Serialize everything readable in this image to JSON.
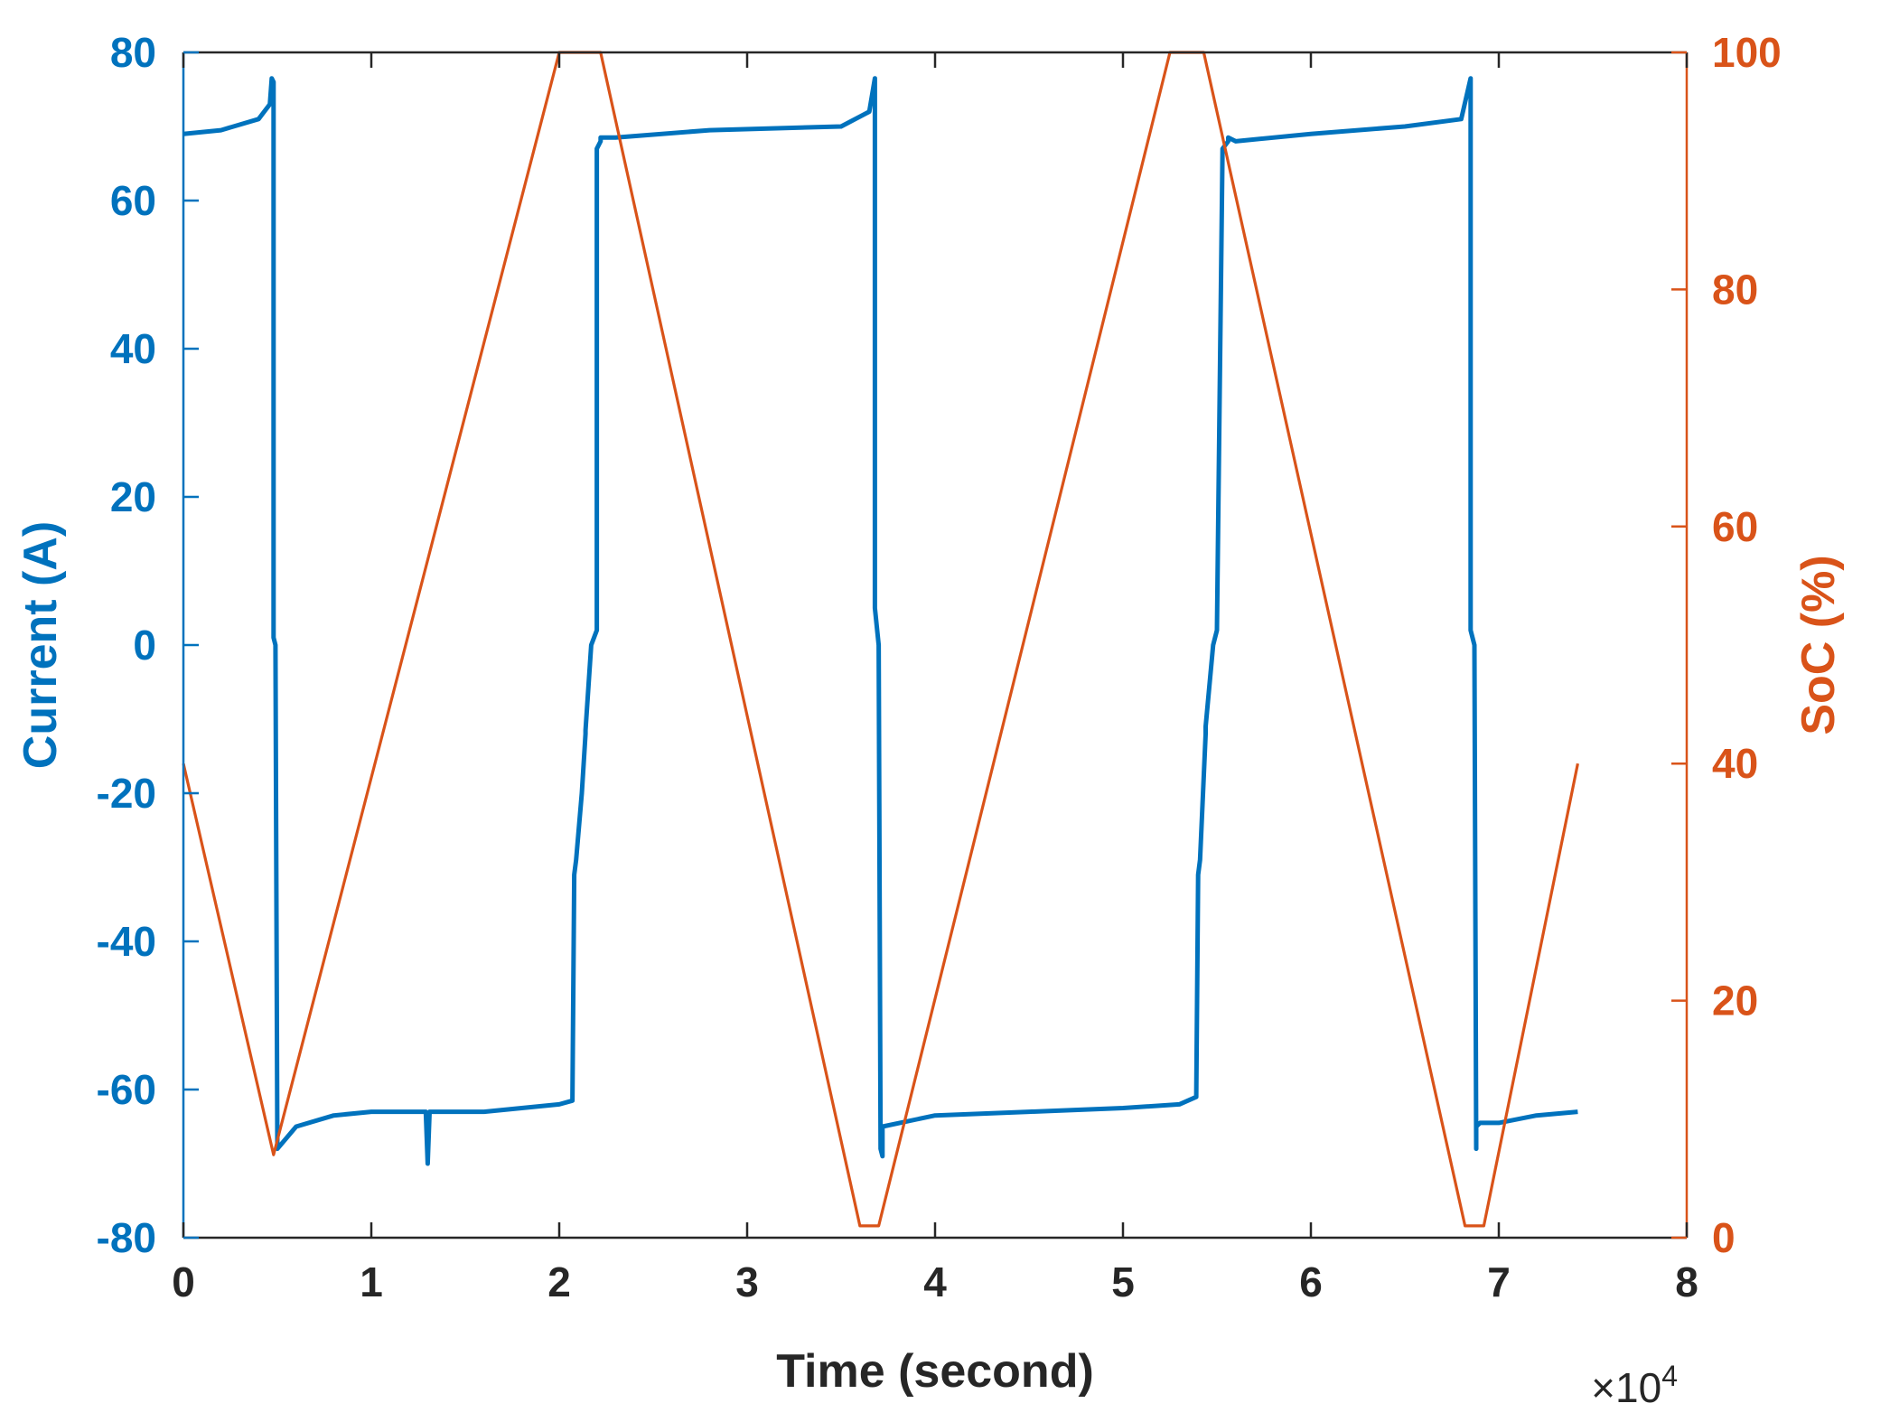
{
  "chart_data": {
    "type": "line",
    "xlabel": "Time (second)",
    "x_exponent_label": "×10",
    "x_exponent_power": "4",
    "x_multiplier": 10000,
    "xlim": [
      0,
      8
    ],
    "xticks": [
      "0",
      "1",
      "2",
      "3",
      "4",
      "5",
      "6",
      "7",
      "8"
    ],
    "left_axis": {
      "label": "Current (A)",
      "color": "#0072BD",
      "ylim": [
        -80,
        80
      ],
      "ticks": [
        "-80",
        "-60",
        "-40",
        "-20",
        "0",
        "20",
        "40",
        "60",
        "80"
      ]
    },
    "right_axis": {
      "label": "SoC (%)",
      "color": "#D95319",
      "ylim": [
        0,
        100
      ],
      "ticks": [
        "0",
        "20",
        "40",
        "60",
        "80",
        "100"
      ]
    },
    "grid": false,
    "series": [
      {
        "axis": "left",
        "color": "#0072BD",
        "x": [
          0,
          0.2,
          0.4,
          0.46,
          0.47,
          0.48,
          0.48,
          0.49,
          0.5,
          0.6,
          0.8,
          1.0,
          1.29,
          1.3,
          1.31,
          1.6,
          2.0,
          2.07,
          2.08,
          2.09,
          2.12,
          2.14,
          2.14,
          2.17,
          2.2,
          2.2,
          2.22,
          2.22,
          2.3,
          2.8,
          3.5,
          3.65,
          3.68,
          3.68,
          3.7,
          3.71,
          3.72,
          3.72,
          4.0,
          4.5,
          5.0,
          5.3,
          5.39,
          5.4,
          5.41,
          5.44,
          5.44,
          5.48,
          5.5,
          5.53,
          5.56,
          5.56,
          5.6,
          6.0,
          6.5,
          6.8,
          6.85,
          6.85,
          6.87,
          6.88,
          6.88,
          6.9,
          7.0,
          7.2,
          7.42
        ],
        "y": [
          69,
          69.5,
          71,
          73,
          76.5,
          76,
          1,
          0,
          -68,
          -65,
          -63.5,
          -63,
          -63,
          -70,
          -63,
          -63,
          -62,
          -61.5,
          -31,
          -29,
          -20,
          -12,
          -11.5,
          0,
          2,
          67,
          68,
          68.5,
          68.5,
          69.5,
          70,
          72,
          76.5,
          5,
          0,
          -68,
          -69,
          -65,
          -63.5,
          -63,
          -62.5,
          -62,
          -61,
          -31,
          -29,
          -12,
          -11,
          0,
          2,
          67,
          68,
          68.5,
          68,
          69,
          70,
          71,
          76.5,
          2,
          0,
          -68,
          -65,
          -64.5,
          -64.5,
          -63.5,
          -63
        ]
      },
      {
        "axis": "right",
        "color": "#D95319",
        "x": [
          0,
          0.48,
          2.0,
          2.22,
          3.6,
          3.7,
          5.25,
          5.43,
          6.82,
          6.92,
          7.42
        ],
        "y": [
          40,
          7,
          100,
          100,
          1,
          1,
          100,
          100,
          1,
          1,
          40
        ]
      }
    ]
  }
}
